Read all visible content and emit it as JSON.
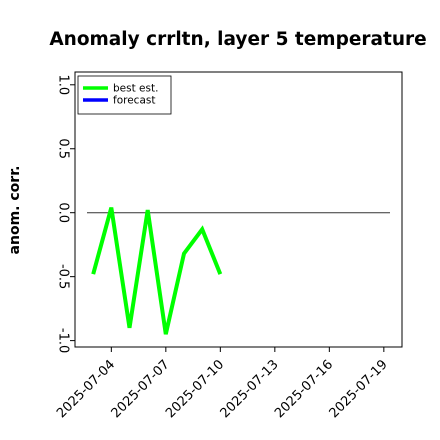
{
  "chart_data": {
    "type": "line",
    "title": "Anomaly crrltn, layer 5 temperature",
    "xlabel": "",
    "ylabel": "anom. corr.",
    "x_dates": [
      "2025-07-03",
      "2025-07-04",
      "2025-07-05",
      "2025-07-06",
      "2025-07-07",
      "2025-07-08",
      "2025-07-09",
      "2025-07-10"
    ],
    "x_ticks": [
      "2025-07-04",
      "2025-07-07",
      "2025-07-10",
      "2025-07-13",
      "2025-07-16",
      "2025-07-19"
    ],
    "x_tick_colors": [
      "#000000",
      "#000000",
      "#228b22",
      "#000000",
      "#000000",
      "#000000"
    ],
    "xlim": [
      "2025-07-02",
      "2025-07-20"
    ],
    "ylim": [
      -1.05,
      1.1
    ],
    "y_ticks": [
      "-1.0",
      "-0.5",
      "0.0",
      "0.5",
      "1.0"
    ],
    "y_tick_values": [
      -1.0,
      -0.5,
      0.0,
      0.5,
      1.0
    ],
    "reference_line_y": 0.0,
    "series": [
      {
        "name": "best est.",
        "color": "#00ff00",
        "values": [
          -0.48,
          0.04,
          -0.9,
          0.02,
          -0.95,
          -0.32,
          -0.13,
          -0.48
        ]
      },
      {
        "name": "forecast",
        "color": "#0000ff",
        "values": []
      }
    ],
    "legend": {
      "position": "top-left",
      "labels": [
        "best est.",
        "forecast"
      ]
    },
    "grid": false
  }
}
